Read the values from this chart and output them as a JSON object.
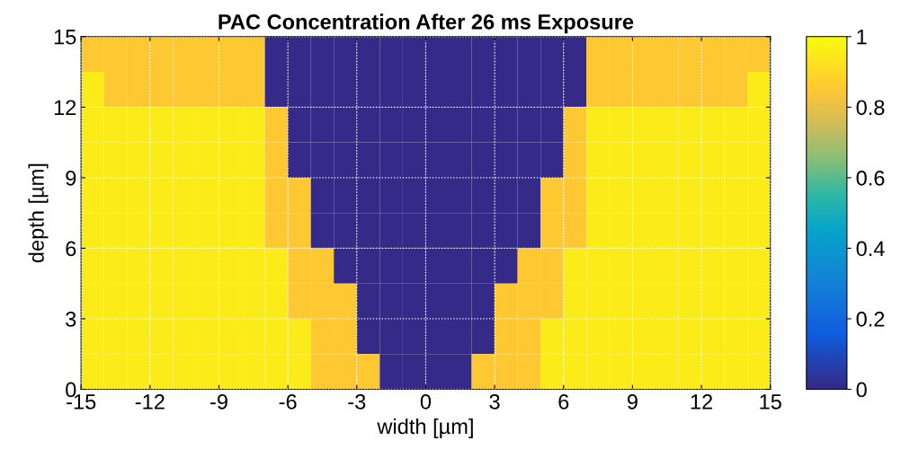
{
  "chart_data": {
    "type": "heatmap",
    "title": "PAC Concentration After 26 ms Exposure",
    "xlabel": "width [µm]",
    "ylabel": "depth [µm]",
    "x": [
      -14.5,
      -13.5,
      -12.5,
      -11.5,
      -10.5,
      -9.5,
      -8.5,
      -7.5,
      -6.5,
      -5.5,
      -4.5,
      -3.5,
      -2.5,
      -1.5,
      -0.5,
      0.5,
      1.5,
      2.5,
      3.5,
      4.5,
      5.5,
      6.5,
      7.5,
      8.5,
      9.5,
      10.5,
      11.5,
      12.5,
      13.5,
      14.5
    ],
    "y": [
      14.25,
      12.75,
      11.25,
      9.75,
      8.25,
      6.75,
      5.25,
      3.75,
      2.25,
      0.75
    ],
    "cells": [
      [
        0.85,
        0.85,
        0.85,
        0.85,
        0.85,
        0.85,
        0.85,
        0.85,
        0,
        0,
        0,
        0,
        0,
        0,
        0,
        0,
        0,
        0,
        0,
        0,
        0,
        0,
        0.85,
        0.85,
        0.85,
        0.85,
        0.85,
        0.85,
        0.85,
        0.85
      ],
      [
        0.95,
        0.85,
        0.85,
        0.85,
        0.85,
        0.85,
        0.85,
        0.85,
        0,
        0,
        0,
        0,
        0,
        0,
        0,
        0,
        0,
        0,
        0,
        0,
        0,
        0,
        0.85,
        0.85,
        0.85,
        0.85,
        0.85,
        0.85,
        0.85,
        0.95
      ],
      [
        0.95,
        0.95,
        0.95,
        0.95,
        0.95,
        0.95,
        0.95,
        0.95,
        0.85,
        0,
        0,
        0,
        0,
        0,
        0,
        0,
        0,
        0,
        0,
        0,
        0,
        0.85,
        0.95,
        0.95,
        0.95,
        0.95,
        0.95,
        0.95,
        0.95,
        0.95
      ],
      [
        0.95,
        0.95,
        0.95,
        0.95,
        0.95,
        0.95,
        0.95,
        0.95,
        0.85,
        0,
        0,
        0,
        0,
        0,
        0,
        0,
        0,
        0,
        0,
        0,
        0,
        0.85,
        0.95,
        0.95,
        0.95,
        0.95,
        0.95,
        0.95,
        0.95,
        0.95
      ],
      [
        0.95,
        0.95,
        0.95,
        0.95,
        0.95,
        0.95,
        0.95,
        0.95,
        0.85,
        0.85,
        0,
        0,
        0,
        0,
        0,
        0,
        0,
        0,
        0,
        0,
        0.85,
        0.85,
        0.95,
        0.95,
        0.95,
        0.95,
        0.95,
        0.95,
        0.95,
        0.95
      ],
      [
        0.95,
        0.95,
        0.95,
        0.95,
        0.95,
        0.95,
        0.95,
        0.95,
        0.85,
        0.85,
        0,
        0,
        0,
        0,
        0,
        0,
        0,
        0,
        0,
        0,
        0.85,
        0.85,
        0.95,
        0.95,
        0.95,
        0.95,
        0.95,
        0.95,
        0.95,
        0.95
      ],
      [
        0.95,
        0.95,
        0.95,
        0.95,
        0.95,
        0.95,
        0.95,
        0.95,
        0.95,
        0.85,
        0.85,
        0,
        0,
        0,
        0,
        0,
        0,
        0,
        0,
        0.85,
        0.85,
        0.95,
        0.95,
        0.95,
        0.95,
        0.95,
        0.95,
        0.95,
        0.95,
        0.95
      ],
      [
        0.95,
        0.95,
        0.95,
        0.95,
        0.95,
        0.95,
        0.95,
        0.95,
        0.95,
        0.85,
        0.85,
        0.85,
        0,
        0,
        0,
        0,
        0,
        0,
        0.85,
        0.85,
        0.85,
        0.95,
        0.95,
        0.95,
        0.95,
        0.95,
        0.95,
        0.95,
        0.95,
        0.95
      ],
      [
        0.95,
        0.95,
        0.95,
        0.95,
        0.95,
        0.95,
        0.95,
        0.95,
        0.95,
        0.95,
        0.85,
        0.85,
        0,
        0,
        0,
        0,
        0,
        0,
        0.85,
        0.85,
        0.95,
        0.95,
        0.95,
        0.95,
        0.95,
        0.95,
        0.95,
        0.95,
        0.95,
        0.95
      ],
      [
        0.95,
        0.95,
        0.95,
        0.95,
        0.95,
        0.95,
        0.95,
        0.95,
        0.95,
        0.95,
        0.85,
        0.85,
        0.85,
        0,
        0,
        0,
        0,
        0.85,
        0.85,
        0.85,
        0.95,
        0.95,
        0.95,
        0.95,
        0.95,
        0.95,
        0.95,
        0.95,
        0.95,
        0.95
      ]
    ],
    "xlim": [
      -15,
      15
    ],
    "xticks": [
      -15,
      -12,
      -9,
      -6,
      -3,
      0,
      3,
      6,
      9,
      12,
      15
    ],
    "ylim": [
      0,
      15
    ],
    "yticks": [
      0,
      3,
      6,
      9,
      12,
      15
    ],
    "clim": [
      0,
      1
    ],
    "cticks": [
      0,
      0.2,
      0.4,
      0.6,
      0.8,
      1
    ],
    "grid": true
  }
}
